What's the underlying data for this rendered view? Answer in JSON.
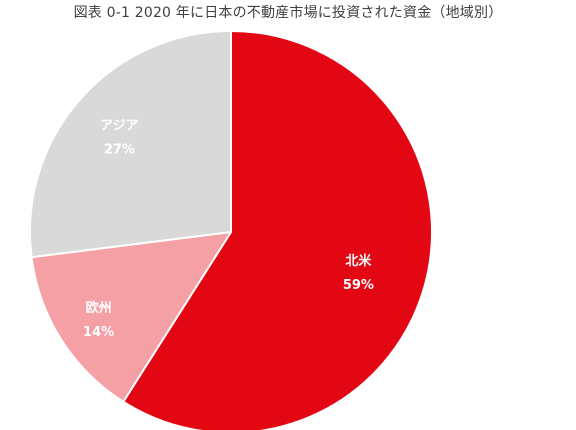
{
  "chart_data": {
    "type": "pie",
    "title": "図表 0-1 2020 年に日本の不動産市場に投資された資金（地域別）",
    "slices": [
      {
        "name": "北米",
        "value": 59,
        "value_label": "59%",
        "color": "#e30613"
      },
      {
        "name": "欧州",
        "value": 14,
        "value_label": "14%",
        "color": "#f5a0a5"
      },
      {
        "name": "アジア",
        "value": 27,
        "value_label": "27%",
        "color": "#d9d9d9"
      }
    ],
    "start_angle": "12 o'clock",
    "direction": "clockwise",
    "legend": "none"
  }
}
